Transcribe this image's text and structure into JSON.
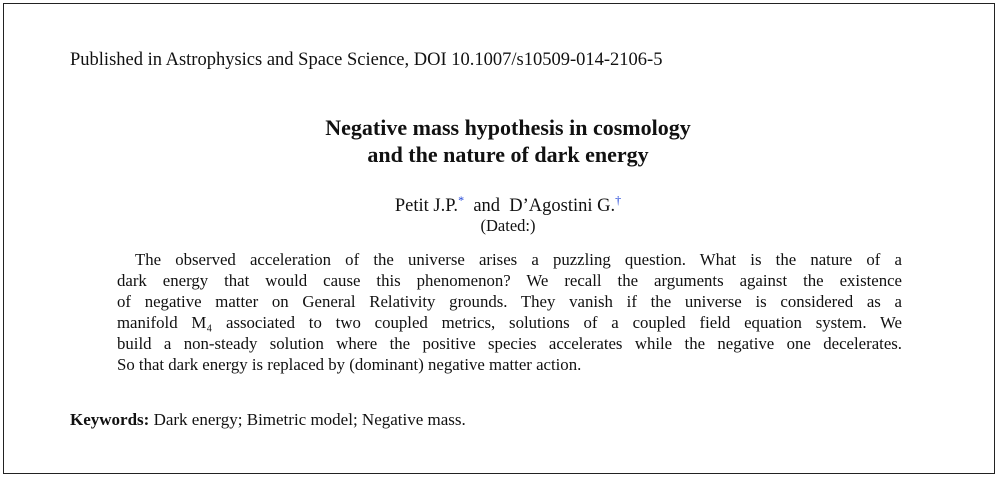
{
  "published": "Published in Astrophysics and Space Science, DOI 10.1007/s10509-014-2106-5",
  "title": [
    "Negative mass hypothesis in cosmology",
    "and the nature of dark energy"
  ],
  "authors": [
    {
      "name": "Petit J.P.",
      "mark": "*"
    },
    {
      "name": "D’Agostini G.",
      "mark": "†"
    }
  ],
  "author_joiner": "and",
  "dated": "(Dated:)",
  "abstract": [
    "The observed acceleration of the universe arises a puzzling question.  What is the nature of a",
    "dark energy that would cause this phenomenon?  We recall the arguments against the existence",
    "of negative matter on General Relativity grounds.  They vanish if the universe is considered as a",
    "manifold M₄ associated to two coupled metrics, solutions of a coupled field equation system.  We",
    "build a non-steady solution where the positive species accelerates while the negative one decelerates.",
    "So that dark energy is replaced by (dominant) negative matter action."
  ],
  "keywords": {
    "label": "Keywords:",
    "text": "Dark energy; Bimetric model; Negative mass."
  }
}
